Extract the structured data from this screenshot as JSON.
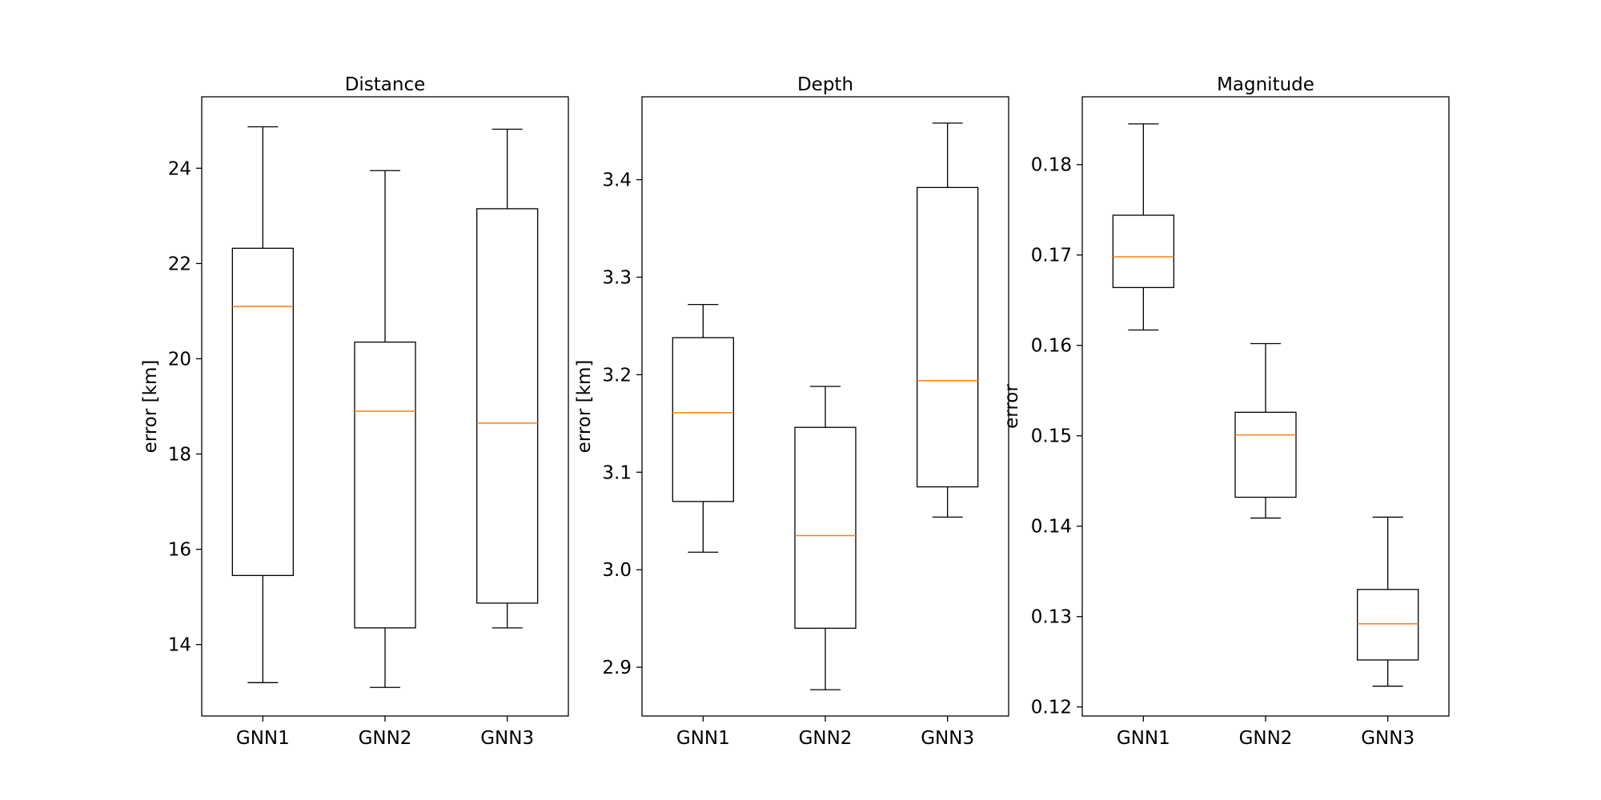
{
  "chart_data": [
    {
      "type": "box",
      "title": "Distance",
      "xlabel": "",
      "ylabel": "error [km]",
      "ylim": [
        12.5,
        25.5
      ],
      "yticks": [
        14,
        16,
        18,
        20,
        22,
        24
      ],
      "categories": [
        "GNN1",
        "GNN2",
        "GNN3"
      ],
      "boxes": [
        {
          "whisker_low": 13.2,
          "q1": 15.45,
          "median": 21.1,
          "q3": 22.32,
          "whisker_high": 24.87
        },
        {
          "whisker_low": 13.1,
          "q1": 14.35,
          "median": 18.9,
          "q3": 20.35,
          "whisker_high": 23.95
        },
        {
          "whisker_low": 14.35,
          "q1": 14.87,
          "median": 18.65,
          "q3": 23.15,
          "whisker_high": 24.82
        }
      ]
    },
    {
      "type": "box",
      "title": "Depth",
      "xlabel": "",
      "ylabel": "error [km]",
      "ylim": [
        2.85,
        3.485
      ],
      "yticks": [
        2.9,
        3.0,
        3.1,
        3.2,
        3.3,
        3.4
      ],
      "ytick_labels": [
        "2.9",
        "3.0",
        "3.1",
        "3.2",
        "3.3",
        "3.4"
      ],
      "categories": [
        "GNN1",
        "GNN2",
        "GNN3"
      ],
      "boxes": [
        {
          "whisker_low": 3.018,
          "q1": 3.07,
          "median": 3.161,
          "q3": 3.238,
          "whisker_high": 3.272
        },
        {
          "whisker_low": 2.877,
          "q1": 2.94,
          "median": 3.035,
          "q3": 3.146,
          "whisker_high": 3.188
        },
        {
          "whisker_low": 3.054,
          "q1": 3.085,
          "median": 3.194,
          "q3": 3.392,
          "whisker_high": 3.458
        }
      ]
    },
    {
      "type": "box",
      "title": "Magnitude",
      "xlabel": "",
      "ylabel": "error",
      "ylim": [
        0.119,
        0.1875
      ],
      "yticks": [
        0.12,
        0.13,
        0.14,
        0.15,
        0.16,
        0.17,
        0.18
      ],
      "ytick_labels": [
        "0.12",
        "0.13",
        "0.14",
        "0.15",
        "0.16",
        "0.17",
        "0.18"
      ],
      "categories": [
        "GNN1",
        "GNN2",
        "GNN3"
      ],
      "boxes": [
        {
          "whisker_low": 0.1617,
          "q1": 0.1664,
          "median": 0.1698,
          "q3": 0.1744,
          "whisker_high": 0.1845
        },
        {
          "whisker_low": 0.1409,
          "q1": 0.1432,
          "median": 0.1501,
          "q3": 0.1526,
          "whisker_high": 0.1602
        },
        {
          "whisker_low": 0.1223,
          "q1": 0.1252,
          "median": 0.1292,
          "q3": 0.133,
          "whisker_high": 0.141
        }
      ]
    }
  ],
  "colors": {
    "box": "#000000",
    "median": "#ff7f0e"
  }
}
